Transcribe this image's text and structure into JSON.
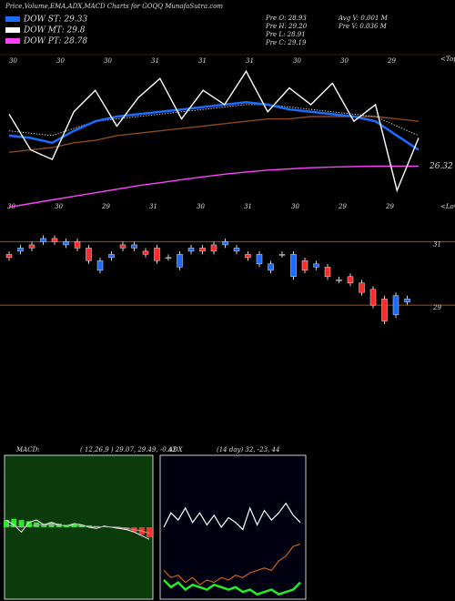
{
  "chart_data": [
    {
      "type": "line",
      "title": "Price,Volume,EMA,ADX,MACD Charts for GOQQ MunafaSutra.com",
      "legend": [
        {
          "label": "DOW ST: 29.33",
          "color": "#1a6cff"
        },
        {
          "label": "DOW MT: 29.8",
          "color": "#ffffff"
        },
        {
          "label": "DOW PT: 28.78",
          "color": "#ff40ff"
        }
      ],
      "info": [
        "Pre O: 28.93",
        "Pre H: 29.20",
        "Pre L: 28.91",
        "Pre C: 29.19",
        "Avg V: 0.001 M",
        "Pre V: 0.036 M"
      ],
      "top_labels": [
        "30",
        "30",
        "30",
        "31",
        "31",
        "31",
        "30",
        "30",
        "29"
      ],
      "bottom_labels": [
        "30",
        "30",
        "29",
        "31",
        "30",
        "31",
        "30",
        "29",
        "29"
      ],
      "tops_label": "<Tops",
      "lows_label": "<Lows",
      "end_label": "26.32",
      "ylim": [
        24.5,
        31
      ],
      "series": [
        {
          "color": "#8a4a1a",
          "values": [
            26.9,
            27.0,
            27.1,
            27.3,
            27.4,
            27.6,
            27.7,
            27.8,
            27.9,
            28.0,
            28.1,
            28.2,
            28.3,
            28.3,
            28.4,
            28.4,
            28.4,
            28.4,
            28.3,
            28.2
          ]
        },
        {
          "color": "#ff40ff",
          "values": [
            24.6,
            24.75,
            24.9,
            25.05,
            25.2,
            25.35,
            25.5,
            25.62,
            25.75,
            25.87,
            25.98,
            26.07,
            26.15,
            26.2,
            26.25,
            26.28,
            26.3,
            26.32,
            26.32,
            26.32
          ]
        },
        {
          "color": "#bbbbbb",
          "dashed": true,
          "values": [
            27.8,
            27.7,
            27.6,
            27.9,
            28.2,
            28.3,
            28.4,
            28.5,
            28.6,
            28.7,
            28.8,
            28.9,
            28.9,
            28.8,
            28.7,
            28.6,
            28.5,
            28.4,
            28.0,
            27.6
          ]
        },
        {
          "color": "#1a6cff",
          "values": [
            27.6,
            27.5,
            27.3,
            27.8,
            28.2,
            28.4,
            28.5,
            28.6,
            28.7,
            28.8,
            28.9,
            29.0,
            28.9,
            28.7,
            28.6,
            28.5,
            28.4,
            28.2,
            27.6,
            27.0
          ]
        },
        {
          "color": "#ffffff",
          "values": [
            28.5,
            27.0,
            26.6,
            28.6,
            29.5,
            28.0,
            29.2,
            30.0,
            28.3,
            29.5,
            28.9,
            30.3,
            28.6,
            29.6,
            28.9,
            29.8,
            28.2,
            28.9,
            25.3,
            27.5
          ]
        }
      ]
    },
    {
      "type": "candlestick",
      "ylim": [
        28,
        31.7
      ],
      "yticks": [
        31,
        29
      ],
      "up_color": "#1a6cff",
      "down_color": "#ff2a2a",
      "opens": [
        30.6,
        30.7,
        30.9,
        31.0,
        31.1,
        30.9,
        31.0,
        30.8,
        30.1,
        30.5,
        30.9,
        30.8,
        30.7,
        30.8,
        30.5,
        30.2,
        30.7,
        30.8,
        30.9,
        30.9,
        30.7,
        30.6,
        30.3,
        30.1,
        30.6,
        29.9,
        30.4,
        30.2,
        30.2,
        29.8,
        29.9,
        29.7,
        29.5,
        29.2,
        28.7,
        29.1
      ],
      "closes": [
        30.5,
        30.8,
        30.8,
        31.1,
        31.0,
        31.0,
        30.8,
        30.4,
        30.4,
        30.6,
        30.8,
        30.9,
        30.6,
        30.4,
        30.5,
        30.6,
        30.8,
        30.7,
        30.7,
        31.0,
        30.8,
        30.5,
        30.6,
        30.3,
        30.6,
        30.6,
        30.1,
        30.3,
        29.9,
        29.8,
        29.7,
        29.4,
        29.0,
        28.5,
        29.3,
        29.2
      ],
      "highs": [
        30.7,
        30.9,
        31.0,
        31.2,
        31.2,
        31.1,
        31.1,
        30.9,
        30.5,
        30.7,
        31.0,
        31.0,
        30.8,
        30.9,
        30.6,
        30.7,
        30.9,
        30.9,
        31.0,
        31.1,
        30.9,
        30.7,
        30.7,
        30.4,
        30.7,
        30.7,
        30.5,
        30.4,
        30.3,
        29.9,
        30.0,
        29.8,
        29.6,
        29.3,
        29.4,
        29.3
      ],
      "lows": [
        30.4,
        30.6,
        30.7,
        30.9,
        30.9,
        30.8,
        30.7,
        30.3,
        30.0,
        30.4,
        30.7,
        30.7,
        30.5,
        30.3,
        30.4,
        30.1,
        30.6,
        30.6,
        30.6,
        30.8,
        30.6,
        30.4,
        30.2,
        30.0,
        30.5,
        29.8,
        30.0,
        30.1,
        29.8,
        29.7,
        29.6,
        29.3,
        28.9,
        28.4,
        28.6,
        29.0
      ]
    },
    {
      "type": "macd",
      "label": "MACD:",
      "params": "( 12,26,9 ) 29.07, 29.49, -0.42",
      "ylim": [
        -3,
        3
      ],
      "panel_color": "#0b3b0b",
      "histogram": [
        0.3,
        0.35,
        0.3,
        0.25,
        0.2,
        0.15,
        0.2,
        0.15,
        0.1,
        0.12,
        0.1,
        0.08,
        0.05,
        0.04,
        0.02,
        -0.05,
        -0.1,
        -0.2,
        -0.3,
        -0.42
      ],
      "series": [
        {
          "color": "#ffffff",
          "values": [
            0.3,
            0.1,
            -0.2,
            0.2,
            0.3,
            0.1,
            0.2,
            0.1,
            0.05,
            0.15,
            0.1,
            0.0,
            -0.05,
            0.05,
            0.0,
            -0.05,
            -0.1,
            -0.2,
            -0.35,
            -0.5
          ]
        },
        {
          "color": "#aaaaaa",
          "values": [
            0.1,
            0.05,
            0.0,
            0.05,
            0.1,
            0.1,
            0.1,
            0.08,
            0.06,
            0.06,
            0.05,
            0.03,
            0.02,
            0.02,
            0.01,
            0.0,
            -0.05,
            -0.1,
            -0.15,
            -0.25
          ]
        }
      ]
    },
    {
      "type": "adx",
      "label": "ADX",
      "params": "(14 day) 32, -23, 44",
      "ylim": [
        0,
        60
      ],
      "series": [
        {
          "color": "#ffffff",
          "values": [
            30,
            36,
            33,
            38,
            32,
            36,
            31,
            35,
            30,
            34,
            32,
            29,
            38,
            31,
            37,
            33,
            36,
            40,
            35,
            32
          ]
        },
        {
          "color": "#c86414",
          "values": [
            12,
            9,
            10,
            7,
            9,
            6,
            8,
            7,
            9,
            8,
            10,
            9,
            11,
            12,
            13,
            12,
            16,
            18,
            22,
            23
          ]
        },
        {
          "color": "#22ee22",
          "values": [
            8,
            5,
            7,
            4,
            6,
            5,
            4,
            6,
            5,
            4,
            5,
            3,
            4,
            2,
            3,
            4,
            2,
            3,
            4,
            7
          ]
        }
      ]
    }
  ]
}
